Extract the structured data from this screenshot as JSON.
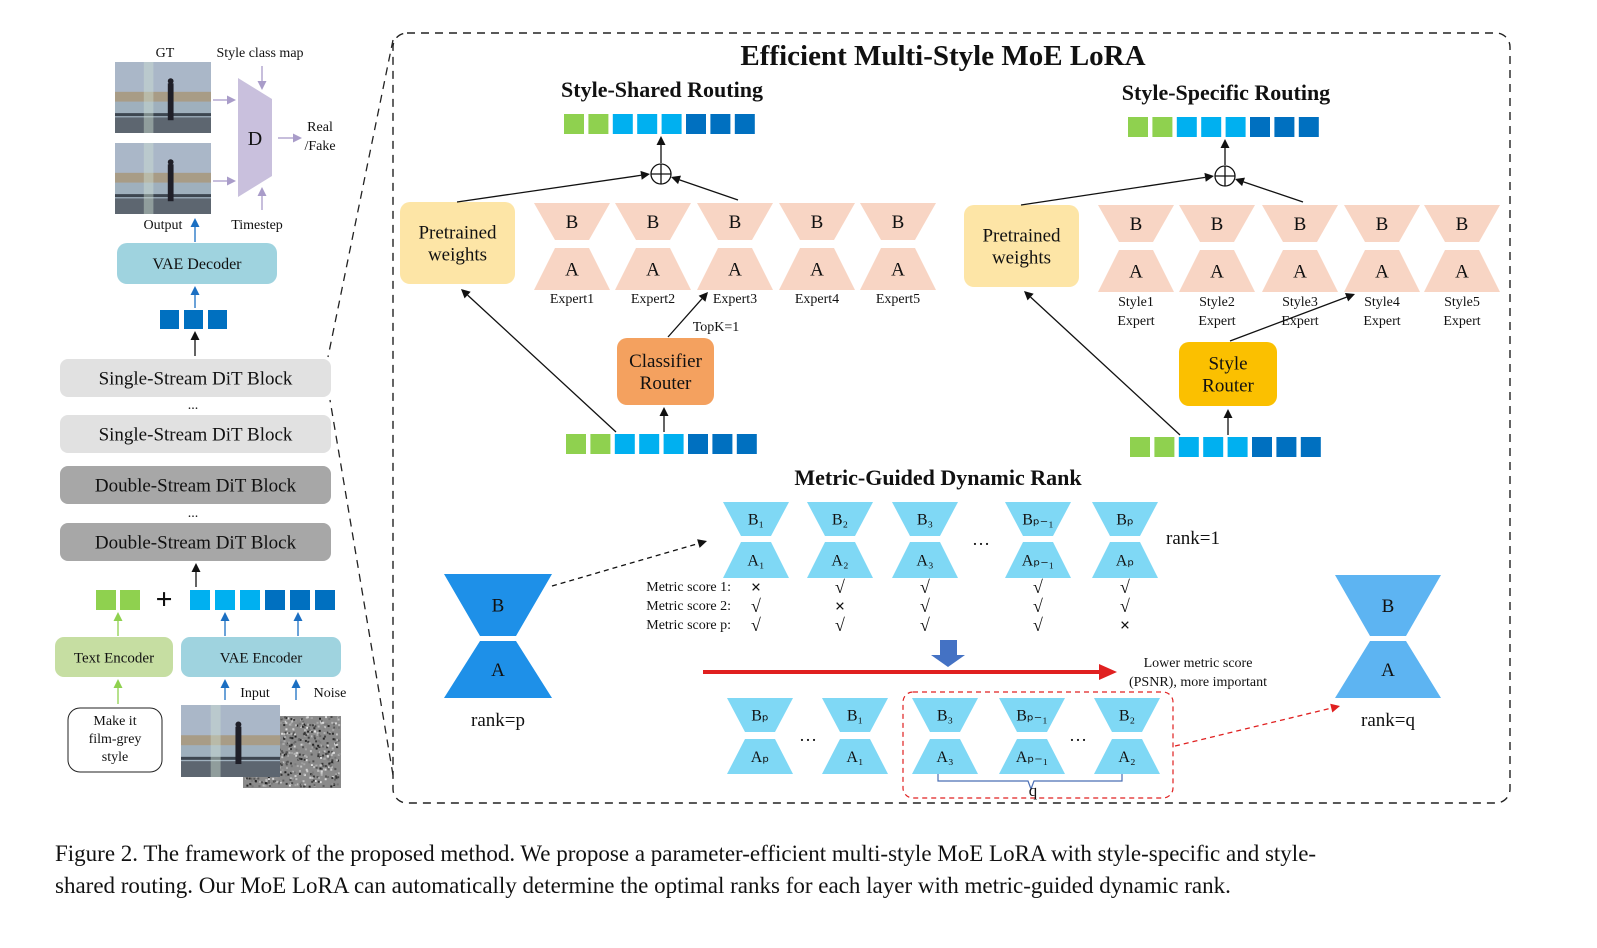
{
  "title": "Efficient Multi-Style MoE LoRA",
  "left": {
    "gt_label": "GT",
    "style_class_map": "Style class map",
    "discriminator": "D",
    "real_fake": [
      "Real",
      "/Fake"
    ],
    "output_label": "Output",
    "timestep_label": "Timestep",
    "vae_decoder": "VAE Decoder",
    "blocks": [
      "Single-Stream DiT Block",
      "Single-Stream DiT Block",
      "Double-Stream DiT Block",
      "Double-Stream DiT Block"
    ],
    "ellipsis": "...",
    "plus": "+",
    "text_encoder": "Text Encoder",
    "vae_encoder": "VAE Encoder",
    "input_label": "Input",
    "noise_label": "Noise",
    "prompt": [
      "Make it",
      "film-grey",
      "style"
    ]
  },
  "shared": {
    "heading": "Style-Shared Routing",
    "pretrained": [
      "Pretrained",
      "weights"
    ],
    "expert_b": "B",
    "expert_a": "A",
    "experts": [
      "Expert1",
      "Expert2",
      "Expert3",
      "Expert4",
      "Expert5"
    ],
    "router": [
      "Classifier",
      "Router"
    ],
    "topk": "TopK=1"
  },
  "specific": {
    "heading": "Style-Specific Routing",
    "pretrained": [
      "Pretrained",
      "weights"
    ],
    "expert_b": "B",
    "expert_a": "A",
    "experts": [
      [
        "Style1",
        "Expert"
      ],
      [
        "Style2",
        "Expert"
      ],
      [
        "Style3",
        "Expert"
      ],
      [
        "Style4",
        "Expert"
      ],
      [
        "Style5",
        "Expert"
      ]
    ],
    "router": [
      "Style",
      "Router"
    ]
  },
  "rank": {
    "heading": "Metric-Guided Dynamic Rank",
    "top_row": [
      {
        "b": "B₁",
        "a": "A₁"
      },
      {
        "b": "B₂",
        "a": "A₂"
      },
      {
        "b": "B₃",
        "a": "A₃"
      },
      {
        "b": "Bₚ₋₁",
        "a": "Aₚ₋₁"
      },
      {
        "b": "Bₚ",
        "a": "Aₚ"
      }
    ],
    "ellipsis": "…",
    "rank1": "rank=1",
    "metric_labels": [
      "Metric score 1:",
      "Metric score 2:",
      "Metric score p:"
    ],
    "marks": [
      [
        "×",
        "√",
        "√",
        "√",
        "√"
      ],
      [
        "√",
        "×",
        "√",
        "√",
        "√"
      ],
      [
        "√",
        "√",
        "√",
        "√",
        "×"
      ]
    ],
    "lower_text": [
      "Lower metric score",
      "(PSNR), more important"
    ],
    "bottom_row": [
      {
        "b": "Bₚ",
        "a": "Aₚ"
      },
      {
        "b": "B₁",
        "a": "A₁"
      },
      {
        "b": "B₃",
        "a": "A₃"
      },
      {
        "b": "Bₚ₋₁",
        "a": "Aₚ₋₁"
      },
      {
        "b": "B₂",
        "a": "A₂"
      }
    ],
    "q": "q",
    "big_b": "B",
    "big_a": "A",
    "rank_p": "rank=p",
    "rank_q": "rank=q"
  },
  "caption": [
    "Figure 2. The framework of the proposed method. We propose a parameter-efficient multi-style MoE LoRA with style-specific and style-",
    "shared routing. Our MoE LoRA can automatically determine the optimal ranks for each layer with metric-guided dynamic rank."
  ],
  "colors": {
    "token_green": "#8fd14f",
    "token_light": "#00b0f0",
    "token_dark": "#0070c0",
    "expert": "#f8d5c4",
    "pretrained": "#fde5a6",
    "classifier_router": "#f4a15f",
    "style_router": "#fbc000",
    "rank_unit": "#7fd8f5",
    "big_lora_p": "#1e90e8",
    "big_lora_q": "#5db4f2",
    "discriminator": "#c9c0dd",
    "vae": "#9fd3df",
    "text_encoder": "#c6dea2",
    "single_block": "#e1e1e1",
    "double_block": "#a7a7a7",
    "red": "#e02020"
  }
}
